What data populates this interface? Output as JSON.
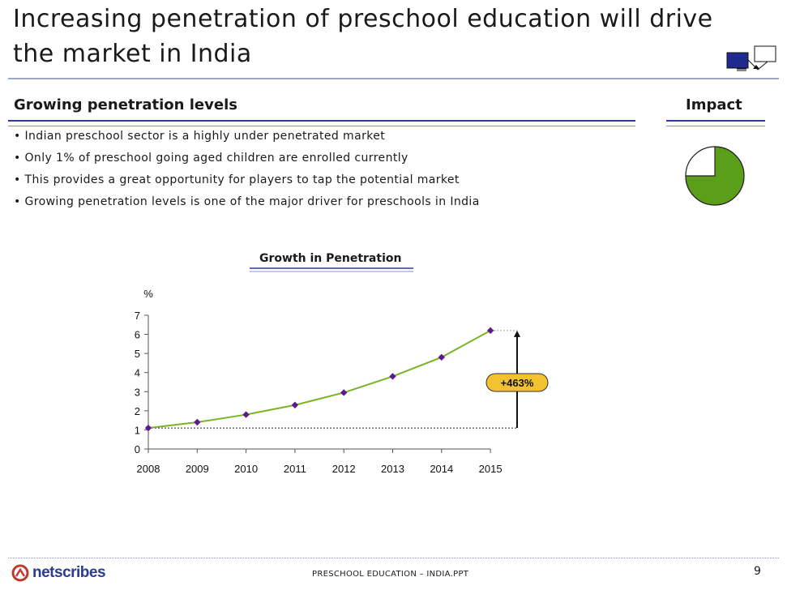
{
  "slide": {
    "title": "Increasing penetration of preschool education will drive the market in India",
    "section_heading": "Growing penetration levels",
    "impact_heading": "Impact",
    "bullets": [
      "• Indian preschool sector is a highly under penetrated market",
      "• Only 1% of preschool going aged children are enrolled currently",
      "• This provides a great opportunity for players to tap the potential market",
      "• Growing penetration levels is one of the major driver for preschools in India"
    ],
    "impact_level": 0.75,
    "colors": {
      "accent_rule": "#2e3a94",
      "impact_fill": "#5a9e1a",
      "line": "#7ab325",
      "marker": "#5b1a8f",
      "callout": "#f2c230"
    }
  },
  "footer": {
    "logo_text": "netscribes",
    "center_text": "PRESCHOOL EDUCATION – INDIA.PPT",
    "page_number": "9"
  },
  "chart_data": {
    "type": "line",
    "title": "Growth in Penetration",
    "ylabel": "%",
    "xlabel": "",
    "categories": [
      "2008",
      "2009",
      "2010",
      "2011",
      "2012",
      "2013",
      "2014",
      "2015"
    ],
    "series": [
      {
        "name": "Penetration",
        "values": [
          1.1,
          1.4,
          1.8,
          2.3,
          2.95,
          3.8,
          4.8,
          6.2
        ]
      }
    ],
    "ylim": [
      0,
      7
    ],
    "yticks": [
      "0",
      "1",
      "2",
      "3",
      "4",
      "5",
      "6",
      "7"
    ],
    "annotation": "+463%",
    "grid": false
  }
}
